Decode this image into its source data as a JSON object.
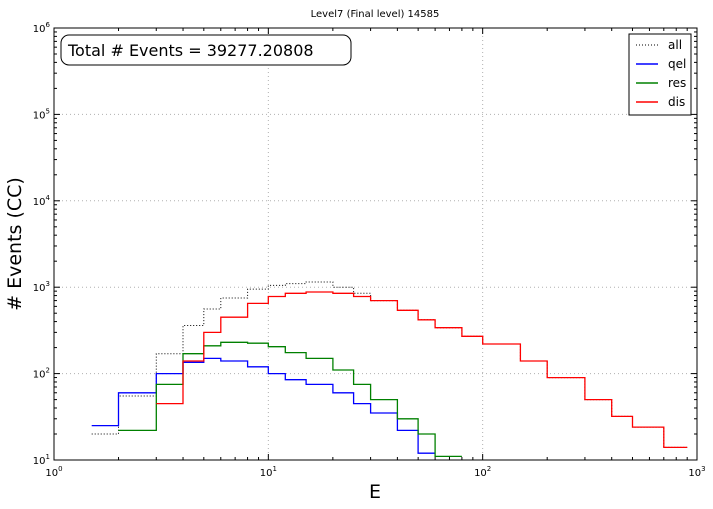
{
  "chart_data": {
    "type": "line",
    "title": "Level7 (Final level) 14585",
    "xlabel": "E",
    "ylabel": "# Events (CC)",
    "xscale": "log",
    "yscale": "log",
    "xlim": [
      1,
      1000
    ],
    "ylim": [
      10,
      1000000
    ],
    "grid": true,
    "legend_position": "top-right",
    "annotation": "Total # Events = 39277.20808",
    "x_ticks": [
      {
        "value": 1,
        "base": "10",
        "exp": "0"
      },
      {
        "value": 10,
        "base": "10",
        "exp": "1"
      },
      {
        "value": 100,
        "base": "10",
        "exp": "2"
      },
      {
        "value": 1000,
        "base": "10",
        "exp": "3"
      }
    ],
    "y_ticks": [
      {
        "value": 10,
        "base": "10",
        "exp": "1"
      },
      {
        "value": 100,
        "base": "10",
        "exp": "2"
      },
      {
        "value": 1000,
        "base": "10",
        "exp": "3"
      },
      {
        "value": 10000,
        "base": "10",
        "exp": "4"
      },
      {
        "value": 100000,
        "base": "10",
        "exp": "5"
      },
      {
        "value": 1000000,
        "base": "10",
        "exp": "6"
      }
    ],
    "x": [
      1.0,
      1.5,
      2.0,
      3.0,
      4.0,
      5.0,
      6.0,
      8.0,
      10.0,
      12.0,
      15.0,
      20.0,
      25.0,
      30.0,
      40.0,
      50.0,
      60.0,
      80.0,
      100.0,
      150.0,
      200.0,
      300.0,
      400.0,
      500.0,
      700.0,
      900.0
    ],
    "series": [
      {
        "name": "all",
        "color": "#000000",
        "style": "dotted",
        "values": [
          null,
          20,
          55,
          170,
          360,
          560,
          750,
          950,
          1050,
          1100,
          1150,
          1000,
          850,
          700,
          540,
          420,
          340,
          270,
          220,
          140,
          90,
          50,
          32,
          24,
          14,
          11
        ]
      },
      {
        "name": "qel",
        "color": "#0000ff",
        "style": "solid",
        "values": [
          null,
          25,
          60,
          100,
          135,
          150,
          140,
          120,
          100,
          85,
          75,
          60,
          45,
          35,
          22,
          12,
          null,
          null,
          null,
          null,
          null,
          null,
          null,
          null,
          null,
          null
        ]
      },
      {
        "name": "res",
        "color": "#008000",
        "style": "solid",
        "values": [
          null,
          null,
          22,
          75,
          170,
          210,
          230,
          225,
          205,
          175,
          150,
          110,
          75,
          50,
          30,
          20,
          11,
          null,
          null,
          null,
          null,
          null,
          null,
          null,
          null,
          null
        ]
      },
      {
        "name": "dis",
        "color": "#ff0000",
        "style": "solid",
        "values": [
          null,
          null,
          null,
          45,
          140,
          300,
          450,
          650,
          780,
          850,
          880,
          850,
          780,
          700,
          540,
          420,
          340,
          270,
          220,
          140,
          90,
          50,
          32,
          24,
          14,
          11
        ]
      }
    ]
  }
}
